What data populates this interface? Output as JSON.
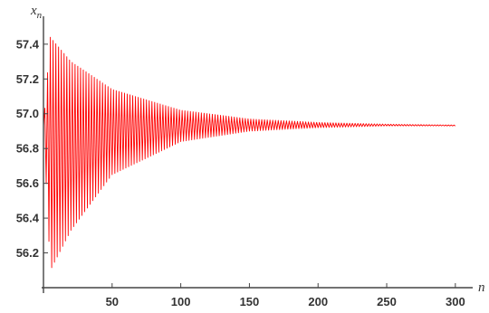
{
  "chart_data": {
    "type": "line",
    "title": "",
    "xlabel": "n",
    "ylabel": "x",
    "ylabel_subscript": "n",
    "xlim": [
      0,
      310
    ],
    "ylim": [
      56.0,
      57.55
    ],
    "x_ticks": [
      50,
      100,
      150,
      200,
      250,
      300
    ],
    "x_tick_labels": [
      "50",
      "100",
      "150",
      "200",
      "250",
      "300"
    ],
    "y_ticks": [
      56.2,
      56.4,
      56.6,
      56.8,
      57.0,
      57.2,
      57.4
    ],
    "y_tick_labels": [
      "56.2",
      "56.4",
      "56.6",
      "56.8",
      "57.0",
      "57.2",
      "57.4"
    ],
    "grid": false,
    "legend": "none",
    "line_color": "#ff0000",
    "series": [
      {
        "values_description_points": {
          "n": [
            0,
            5,
            20,
            50,
            100,
            150,
            200,
            250,
            300
          ],
          "upper_envelope": [
            56.93,
            57.44,
            57.3,
            57.14,
            57.02,
            56.97,
            56.95,
            56.94,
            56.935
          ],
          "lower_envelope": [
            56.93,
            56.1,
            56.33,
            56.65,
            56.84,
            56.9,
            56.92,
            56.93,
            56.93
          ]
        },
        "equilibrium": 56.93,
        "n_max": 300
      }
    ]
  }
}
